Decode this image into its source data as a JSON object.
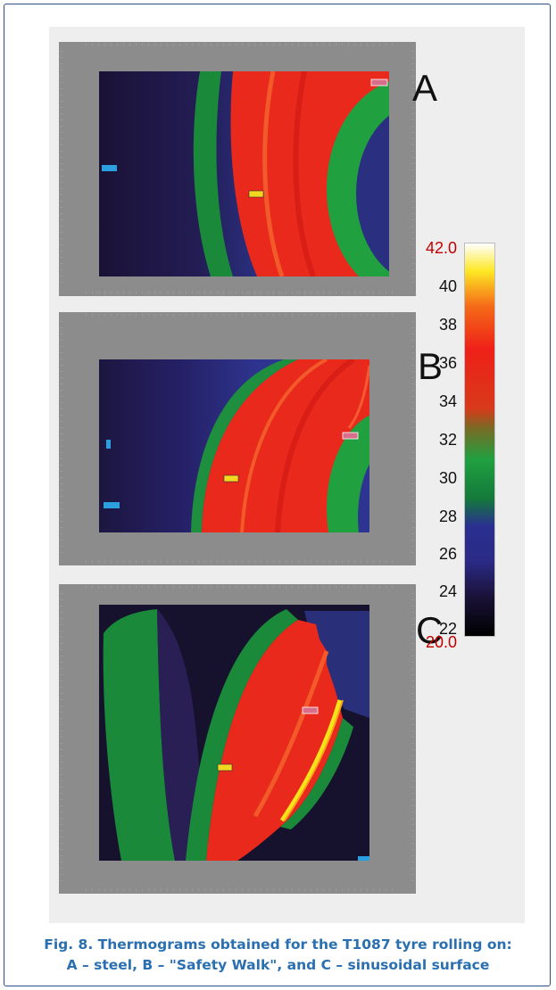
{
  "panels": [
    {
      "letter": "A"
    },
    {
      "letter": "B"
    },
    {
      "letter": "C"
    }
  ],
  "scale": {
    "max_label": "42.0",
    "min_label": "20.0",
    "ticks": [
      "40",
      "38",
      "36",
      "34",
      "32",
      "30",
      "28",
      "26",
      "24",
      "22"
    ]
  },
  "caption": {
    "line1": "Fig. 8. Thermograms obtained for the T1087 tyre rolling on:",
    "line2": "A – steel, B – \"Safety Walk\", and C – sinusoidal surface"
  }
}
